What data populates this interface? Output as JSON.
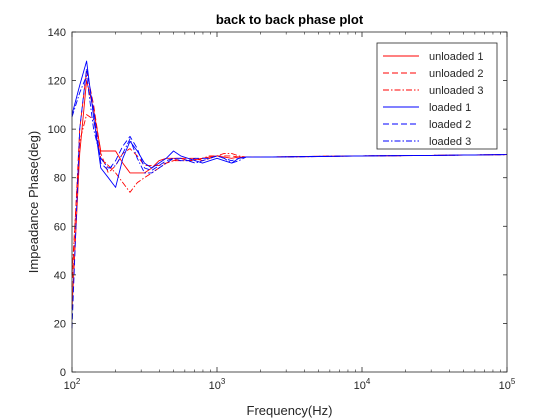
{
  "chart_data": {
    "type": "line",
    "title": "back to back phase plot",
    "xlabel": "Frequency(Hz)",
    "ylabel": "Impeadance Phase(deg)",
    "xscale": "log",
    "xlim": [
      100,
      100000
    ],
    "ylim": [
      0,
      140
    ],
    "x_tick_labels": [
      {
        "base": "10",
        "exp": "2"
      },
      {
        "base": "10",
        "exp": "3"
      },
      {
        "base": "10",
        "exp": "4"
      },
      {
        "base": "10",
        "exp": "5"
      }
    ],
    "y_ticks": [
      0,
      20,
      40,
      60,
      80,
      100,
      120,
      140
    ],
    "y_tick_labels": [
      "0",
      "20",
      "40",
      "60",
      "80",
      "100",
      "120",
      "140"
    ],
    "grid": false,
    "legend_position": "top-right",
    "series": [
      {
        "name": "unloaded 1",
        "color": "#ff0000",
        "dash": "solid",
        "x": [
          100,
          113,
          126,
          141,
          158,
          178,
          200,
          224,
          251,
          282,
          316,
          355,
          398,
          447,
          501,
          562,
          631,
          708,
          794,
          891,
          1000,
          1122,
          1259,
          1413,
          1585,
          2000,
          5000,
          10000,
          30000,
          100000
        ],
        "y": [
          26,
          90,
          120,
          108,
          91,
          91,
          91,
          86,
          82,
          82,
          82,
          84,
          87,
          88,
          88,
          88,
          87,
          87.5,
          88,
          88.5,
          89,
          88.5,
          88,
          88.5,
          88.5,
          88.5,
          88.7,
          89,
          89.2,
          89.5
        ]
      },
      {
        "name": "unloaded 2",
        "color": "#ff0000",
        "dash": "dashed",
        "x": [
          100,
          113,
          126,
          141,
          158,
          178,
          200,
          224,
          251,
          282,
          316,
          355,
          398,
          447,
          501,
          562,
          631,
          708,
          794,
          891,
          1000,
          1122,
          1259,
          1413,
          1585,
          2000,
          5000,
          10000,
          30000,
          100000
        ],
        "y": [
          35,
          100,
          124,
          110,
          90,
          82,
          85,
          90,
          92,
          89,
          85,
          85,
          85,
          86,
          87,
          88,
          88,
          88,
          87,
          88,
          89,
          89,
          89,
          88.5,
          88.5,
          88.5,
          88.8,
          89,
          89.2,
          89.5
        ]
      },
      {
        "name": "unloaded 3",
        "color": "#ff0000",
        "dash": "dashdot",
        "x": [
          100,
          113,
          126,
          141,
          158,
          178,
          200,
          224,
          251,
          282,
          316,
          355,
          398,
          447,
          501,
          562,
          631,
          708,
          794,
          891,
          1000,
          1122,
          1259,
          1413,
          1585,
          2000,
          5000,
          10000,
          30000,
          100000
        ],
        "y": [
          40,
          95,
          106,
          104,
          88,
          85,
          82,
          78,
          74,
          78,
          80,
          82,
          84,
          86,
          87,
          87,
          87,
          87,
          88,
          89,
          89,
          90,
          90,
          89,
          88.5,
          88.5,
          88.8,
          89,
          89.2,
          89.5
        ]
      },
      {
        "name": "loaded 1",
        "color": "#0000ff",
        "dash": "solid",
        "x": [
          100,
          113,
          126,
          141,
          158,
          178,
          200,
          224,
          251,
          282,
          316,
          355,
          398,
          447,
          501,
          562,
          631,
          708,
          794,
          891,
          1000,
          1122,
          1259,
          1413,
          1585,
          2000,
          5000,
          10000,
          30000,
          100000
        ],
        "y": [
          106,
          118,
          128,
          105,
          84,
          80,
          76,
          88,
          95,
          91,
          86,
          84,
          86,
          88,
          91,
          89,
          88,
          87,
          86,
          87,
          88,
          87,
          86,
          88,
          88.5,
          88.5,
          88.7,
          89,
          89.2,
          89.5
        ]
      },
      {
        "name": "loaded 2",
        "color": "#0000ff",
        "dash": "dashed",
        "x": [
          100,
          113,
          126,
          141,
          158,
          178,
          200,
          224,
          251,
          282,
          316,
          355,
          398,
          447,
          501,
          562,
          631,
          708,
          794,
          891,
          1000,
          1122,
          1259,
          1413,
          1585,
          2000,
          5000,
          10000,
          30000,
          100000
        ],
        "y": [
          18,
          100,
          125,
          108,
          86,
          83,
          87,
          93,
          97,
          92,
          84,
          83,
          85,
          87,
          88,
          88,
          87,
          88,
          88,
          88,
          89,
          88,
          87,
          88,
          88.5,
          88.5,
          88.8,
          89,
          89.2,
          89.5
        ]
      },
      {
        "name": "loaded 3",
        "color": "#0000ff",
        "dash": "dashdot",
        "x": [
          100,
          113,
          126,
          141,
          158,
          178,
          200,
          224,
          251,
          282,
          316,
          355,
          398,
          447,
          501,
          562,
          631,
          708,
          794,
          891,
          1000,
          1122,
          1259,
          1413,
          1585,
          2000,
          5000,
          10000,
          30000,
          100000
        ],
        "y": [
          105,
          115,
          122,
          100,
          88,
          84,
          85,
          90,
          96,
          88,
          82,
          82,
          84,
          86,
          88,
          87,
          87,
          86,
          87,
          88,
          89,
          88,
          86,
          87,
          88.5,
          88.5,
          88.7,
          89,
          89.2,
          89.5
        ]
      }
    ]
  }
}
